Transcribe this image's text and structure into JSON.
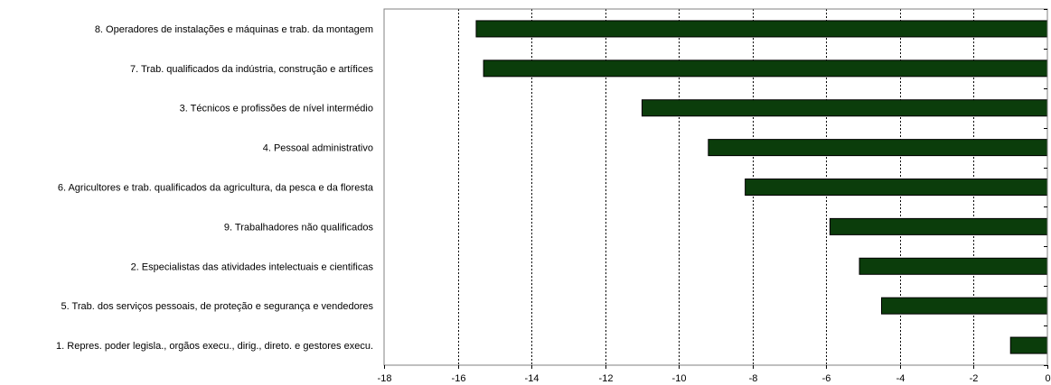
{
  "chart_data": {
    "type": "bar",
    "orientation": "horizontal",
    "categories": [
      "8.  Operadores de instalações e máquinas e trab. da montagem",
      "7.  Trab. qualificados da indústria, construção e artífices",
      "3.  Técnicos e profissões de nível intermédio",
      "4.  Pessoal administrativo",
      "6.  Agricultores e trab. qualificados da agricultura, da pesca e da floresta",
      "9.  Trabalhadores não qualificados",
      "2.  Especialistas das atividades intelectuais e cientificas",
      "5.  Trab. dos serviços pessoais, de proteção e segurança e vendedores",
      "1.  Repres. poder legisla., orgãos execu., dirig., direto. e gestores execu."
    ],
    "values": [
      -15.5,
      -15.3,
      -11.0,
      -9.2,
      -8.2,
      -5.9,
      -5.1,
      -4.5,
      -1.0
    ],
    "xlim": [
      -18,
      0
    ],
    "xticks": [
      -18,
      -16,
      -14,
      -12,
      -10,
      -8,
      -6,
      -4,
      -2,
      0
    ],
    "xtick_labels": [
      "-18",
      "-16",
      "-14",
      "-12",
      "-10",
      "-8",
      "-6",
      "-4",
      "-2",
      "0"
    ],
    "grid": "vertical-dashed",
    "bar_color": "#0b3d0b",
    "title": "",
    "xlabel": "",
    "ylabel": ""
  }
}
